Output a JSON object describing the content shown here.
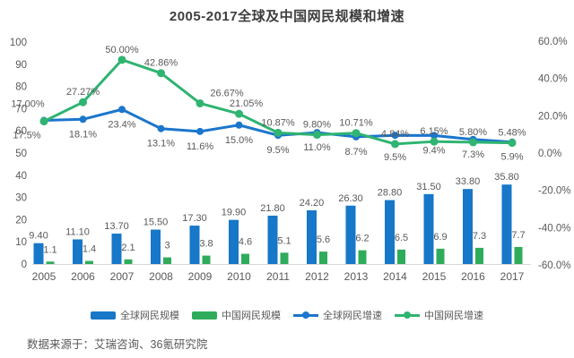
{
  "title": "2005-2017全球及中国网民规模和增速",
  "source_note": "数据来源于：艾瑞咨询、36氪研究院",
  "colors": {
    "global_bar": "#1777C8",
    "china_bar": "#2FAC5B",
    "global_line": "#1B76CC",
    "china_line": "#2FB471",
    "label_text": "#595959",
    "title_text": "#3d3d3d",
    "axis_line": "#D9D9D9"
  },
  "chart_data": {
    "type": "combo: bar (left axis) + line (right axis)",
    "categories": [
      "2005",
      "2006",
      "2007",
      "2008",
      "2009",
      "2010",
      "2011",
      "2012",
      "2013",
      "2014",
      "2015",
      "2016",
      "2017"
    ],
    "series": [
      {
        "name": "全球网民规模",
        "type": "bar",
        "axis": "left",
        "values": [
          9.4,
          11.1,
          13.7,
          15.5,
          17.3,
          19.9,
          21.8,
          24.2,
          26.3,
          28.8,
          31.5,
          33.8,
          35.8
        ],
        "labels": [
          "9.40",
          "11.10",
          "13.70",
          "15.50",
          "17.30",
          "19.90",
          "21.80",
          "24.20",
          "26.30",
          "28.80",
          "31.50",
          "33.80",
          "35.80"
        ]
      },
      {
        "name": "中国网民规模",
        "type": "bar",
        "axis": "left",
        "values": [
          1.1,
          1.4,
          2.1,
          3,
          3.8,
          4.6,
          5.1,
          5.6,
          6.2,
          6.5,
          6.9,
          7.3,
          7.7
        ],
        "labels": [
          "1.1",
          "1.4",
          "2.1",
          "3",
          "3.8",
          "4.6",
          "5.1",
          "5.6",
          "6.2",
          "6.5",
          "6.9",
          "7.3",
          "7.7"
        ]
      },
      {
        "name": "全球网民增速",
        "type": "line",
        "axis": "right",
        "values": [
          17.5,
          18.1,
          23.4,
          13.1,
          11.6,
          15.0,
          9.5,
          11.0,
          8.7,
          9.5,
          9.4,
          7.3,
          5.9
        ],
        "labels": [
          "17.5%",
          "18.1%",
          "23.4%",
          "13.1%",
          "11.6%",
          "15.0%",
          "9.5%",
          "11.0%",
          "8.7%",
          "9.5%",
          "9.4%",
          "7.3%",
          "5.9%"
        ]
      },
      {
        "name": "中国网民增速",
        "type": "line",
        "axis": "right",
        "values": [
          17.0,
          27.27,
          50.0,
          42.86,
          26.67,
          21.05,
          10.87,
          9.8,
          10.71,
          4.84,
          6.15,
          5.8,
          5.48
        ],
        "labels": [
          "17.00%",
          "27.27%",
          "50.00%",
          "42.86%",
          "26.67%",
          "21.05%",
          "10.87%",
          "9.80%",
          "10.71%",
          "4.84%",
          "6.15%",
          "5.80%",
          "5.48%"
        ]
      }
    ],
    "left_axis": {
      "min": 0,
      "max": 100,
      "step": 10,
      "tick_labels": [
        "0",
        "10",
        "20",
        "30",
        "40",
        "50",
        "60",
        "70",
        "80",
        "90",
        "100"
      ]
    },
    "right_axis": {
      "min": -60,
      "max": 60,
      "step": 20,
      "tick_labels": [
        "60.0%",
        "40.0%",
        "20.0%",
        "0.0%",
        "-20.0%",
        "-40.0%",
        "-60.0%"
      ]
    },
    "legend": [
      "全球网民规模",
      "中国网民规模",
      "全球网民增速",
      "中国网民增速"
    ],
    "legend_position": "bottom",
    "grid": false
  }
}
